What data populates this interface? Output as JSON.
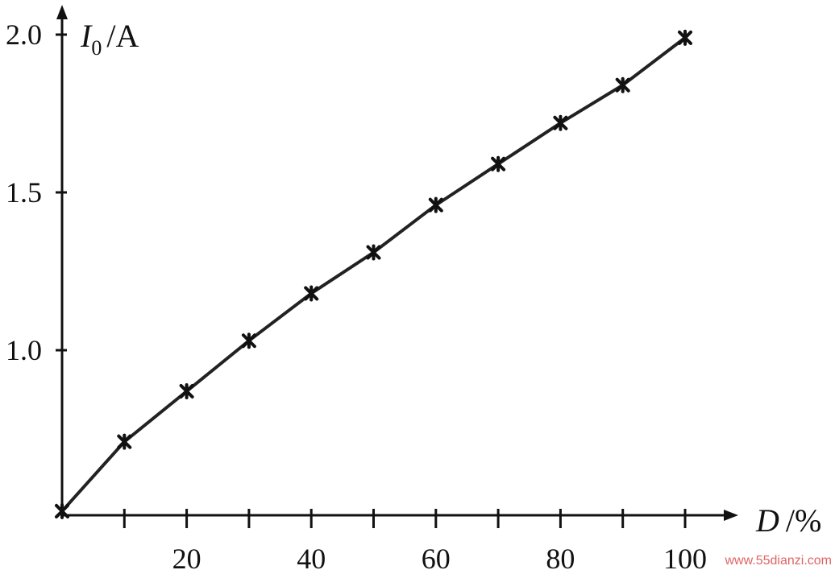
{
  "chart_data": {
    "type": "line",
    "title": "",
    "xlabel": "D",
    "xlabel_unit": "/%",
    "ylabel": "I",
    "ylabel_sub": "0",
    "ylabel_unit": "/A",
    "xlim": [
      0,
      100
    ],
    "ylim": [
      0.45,
      2.0
    ],
    "xticks": [
      0,
      10,
      20,
      30,
      40,
      50,
      60,
      70,
      80,
      90,
      100
    ],
    "xtick_labels": [
      {
        "value": 20,
        "label": "20"
      },
      {
        "value": 40,
        "label": "40"
      },
      {
        "value": 60,
        "label": "60"
      },
      {
        "value": 80,
        "label": "80"
      },
      {
        "value": 100,
        "label": "100"
      }
    ],
    "yticks": [
      {
        "value": 1.0,
        "label": "1.0"
      },
      {
        "value": 1.5,
        "label": "1.5"
      },
      {
        "value": 2.0,
        "label": "2.0"
      }
    ],
    "grid": false,
    "series": [
      {
        "x": [
          0,
          10,
          20,
          30,
          40,
          50,
          60,
          70,
          80,
          90,
          100
        ],
        "y": [
          0.49,
          0.71,
          0.87,
          1.03,
          1.18,
          1.31,
          1.46,
          1.59,
          1.72,
          1.84,
          1.99
        ]
      }
    ]
  },
  "watermark": "www.55dianzi.com"
}
